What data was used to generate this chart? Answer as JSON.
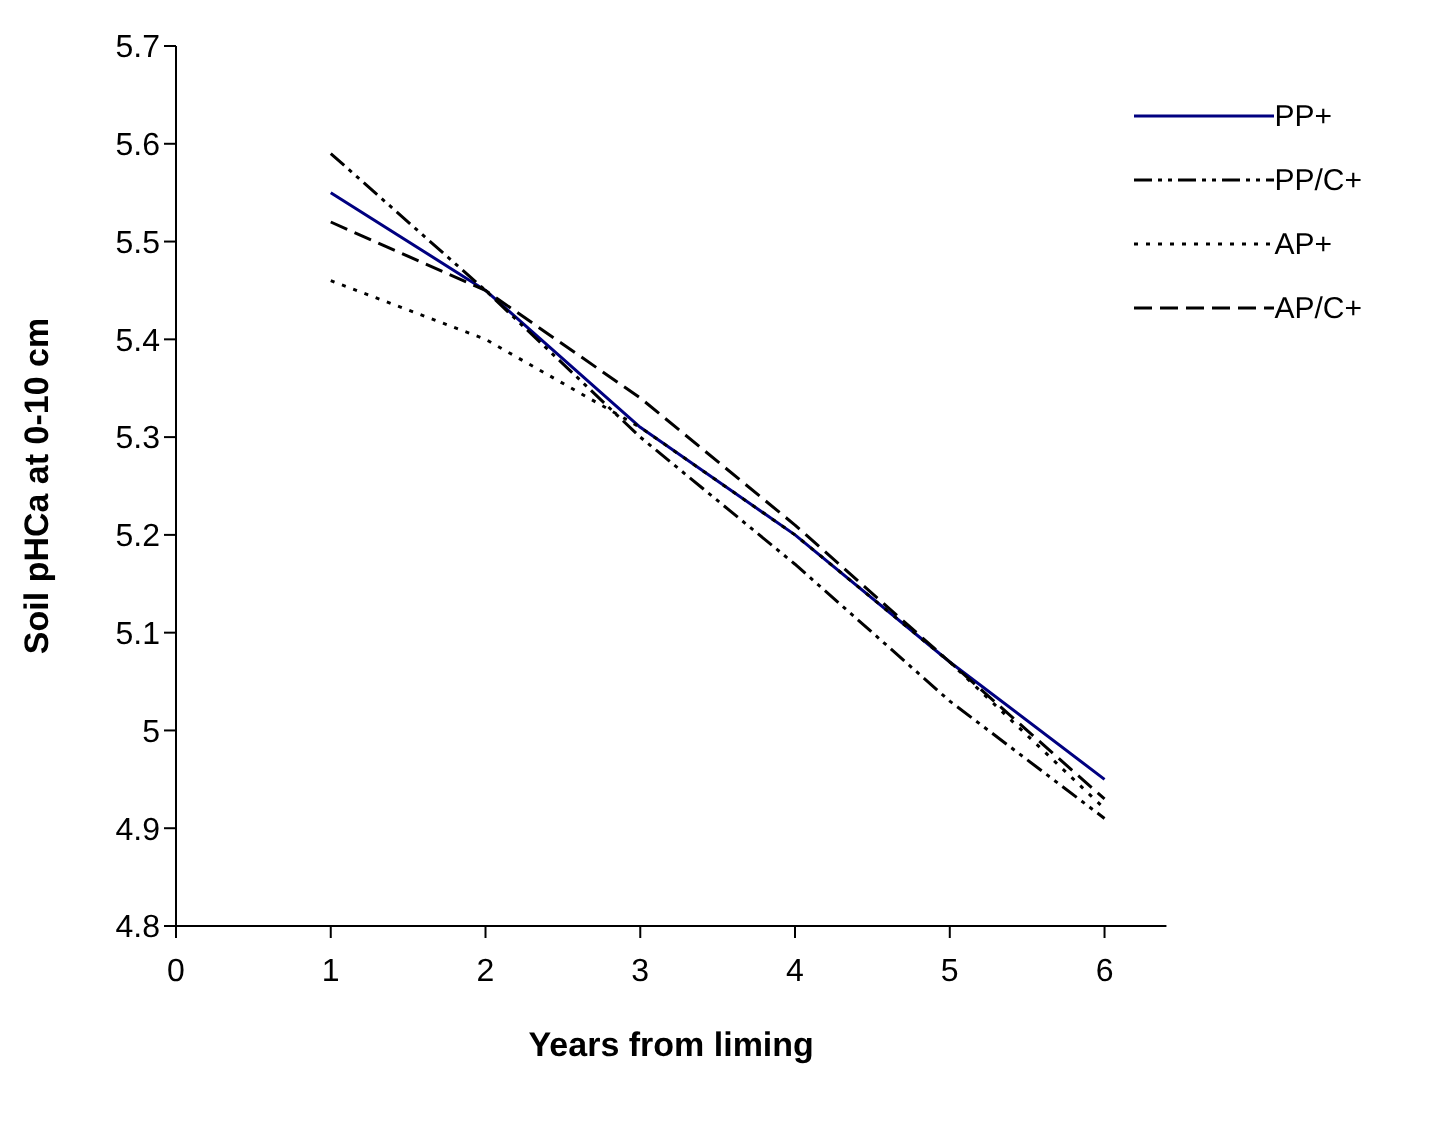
{
  "chart_data": {
    "type": "line",
    "xlabel": "Years from liming",
    "ylabel": "Soil pHCa at 0-10 cm",
    "x": [
      1,
      2,
      3,
      4,
      5,
      6
    ],
    "series": [
      {
        "name": "PP+",
        "color": "#000080",
        "line_style": "solid",
        "values": [
          5.55,
          5.45,
          5.31,
          5.2,
          5.07,
          4.95
        ]
      },
      {
        "name": "PP/C+",
        "color": "#000000",
        "line_style": "dashdot",
        "values": [
          5.59,
          5.45,
          5.3,
          5.17,
          5.03,
          4.91
        ]
      },
      {
        "name": "AP+",
        "color": "#000000",
        "line_style": "dotted",
        "values": [
          5.46,
          5.4,
          5.31,
          5.2,
          5.07,
          4.92
        ]
      },
      {
        "name": "AP/C+",
        "color": "#000000",
        "line_style": "dashed",
        "values": [
          5.52,
          5.45,
          5.34,
          5.21,
          5.07,
          4.93
        ]
      }
    ],
    "xlim": [
      0,
      6.4
    ],
    "xticks": [
      0,
      1,
      2,
      3,
      4,
      5,
      6
    ],
    "ylim": [
      4.8,
      5.7
    ],
    "yticks": [
      4.8,
      4.9,
      5,
      5.1,
      5.2,
      5.3,
      5.4,
      5.5,
      5.6,
      5.7
    ],
    "grid": false,
    "legend": "top right",
    "marker": "none"
  }
}
